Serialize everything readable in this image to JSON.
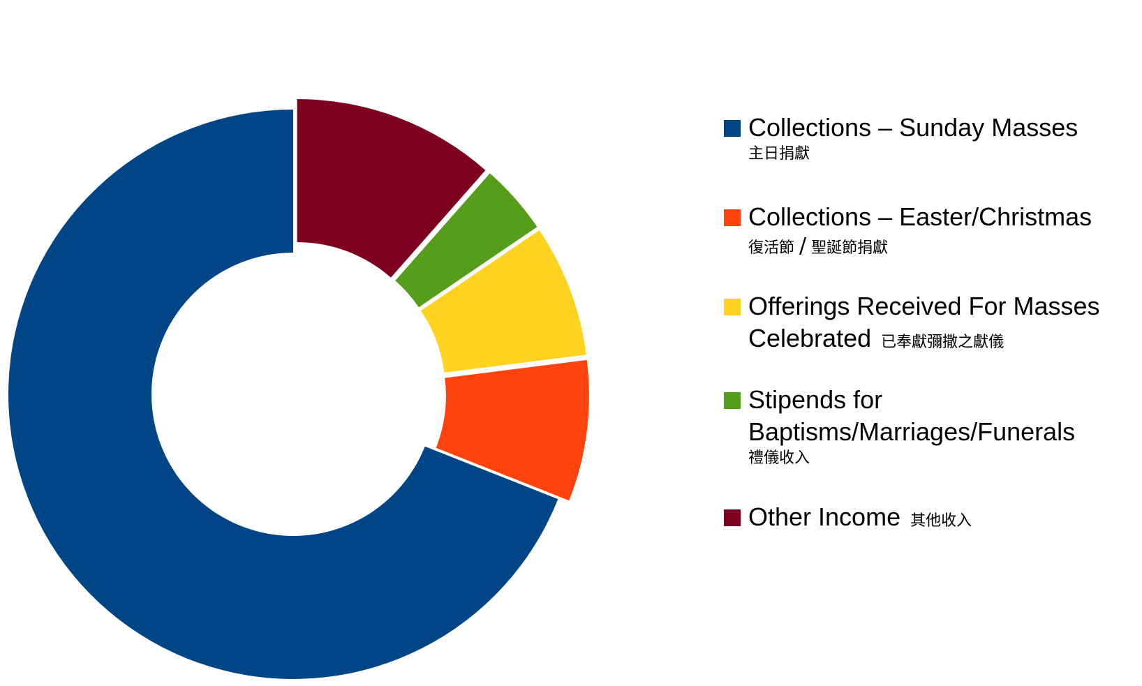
{
  "chart_data": {
    "type": "pie",
    "donut": true,
    "exploded_slices": true,
    "legend_position": "right",
    "categories": [
      "Collections – Sunday Masses",
      "Collections – Easter/Christmas",
      "Offerings Received For Masses Celebrated",
      "Stipends for Baptisms/Marriages/Funerals",
      "Other Income"
    ],
    "values": [
      69,
      8,
      7.5,
      4,
      11.5
    ],
    "colors": [
      "#004586",
      "#ff420e",
      "#ffd320",
      "#579d1c",
      "#7e0021"
    ]
  },
  "legend": {
    "items": [
      {
        "en": "Collections – Sunday Masses",
        "zh": "主日捐獻",
        "color": "#004586"
      },
      {
        "en": "Collections – Easter/Christmas",
        "zh_a": "復活節",
        "slash": "/",
        "zh_b": "聖誕節捐獻",
        "color": "#ff420e"
      },
      {
        "en_line1": "Offerings Received For Masses",
        "en_line2": "Celebrated",
        "zh": "已奉獻彌撒之獻儀",
        "color": "#ffd320"
      },
      {
        "en_line1": "Stipends for",
        "en_line2": "Baptisms/Marriages/Funerals",
        "zh": "禮儀收入",
        "color": "#579d1c"
      },
      {
        "en": "Other Income",
        "zh": "其他收入",
        "color": "#7e0021"
      }
    ]
  }
}
